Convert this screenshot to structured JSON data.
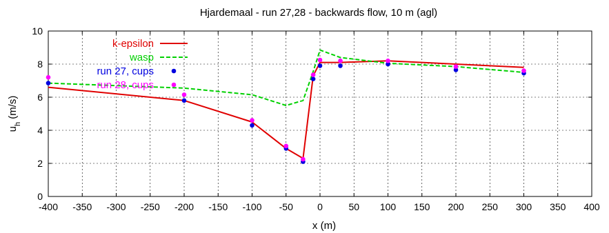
{
  "chart_data": {
    "type": "line",
    "title": "Hjardemaal - run 27,28 - backwards flow, 10 m (agl)",
    "xlabel": "x (m)",
    "ylabel_main": "u",
    "ylabel_sub": "h",
    "ylabel_unit": " (m/s)",
    "xlim": [
      -400,
      400
    ],
    "ylim": [
      0,
      10
    ],
    "xticks": [
      -400,
      -350,
      -300,
      -250,
      -200,
      -150,
      -100,
      -50,
      0,
      50,
      100,
      150,
      200,
      250,
      300,
      350,
      400
    ],
    "yticks": [
      0,
      2,
      4,
      6,
      8,
      10
    ],
    "grid": true,
    "legend_position": "top-left",
    "series": [
      {
        "name": "k-epsilon",
        "style": "line",
        "color": "#e00000",
        "x": [
          -400,
          -200,
          -100,
          -50,
          -25,
          -10,
          0,
          30,
          100,
          200,
          300
        ],
        "y": [
          6.6,
          5.8,
          4.5,
          2.9,
          2.3,
          7.3,
          8.1,
          8.1,
          8.2,
          8.0,
          7.8
        ]
      },
      {
        "name": "wasp",
        "style": "dashed",
        "color": "#00d000",
        "x": [
          -400,
          -200,
          -100,
          -50,
          -25,
          -10,
          0,
          30,
          100,
          200,
          300
        ],
        "y": [
          6.85,
          6.55,
          6.15,
          5.5,
          5.8,
          7.55,
          8.85,
          8.4,
          8.05,
          7.85,
          7.5
        ]
      },
      {
        "name": "run 27, cups",
        "style": "points",
        "color": "#0000e0",
        "x": [
          -400,
          -200,
          -100,
          -50,
          -25,
          -10,
          0,
          30,
          100,
          200,
          300
        ],
        "y": [
          6.85,
          5.8,
          4.3,
          2.9,
          2.1,
          7.1,
          7.9,
          7.9,
          8.0,
          7.65,
          7.45
        ]
      },
      {
        "name": "run 28, cups",
        "style": "points",
        "color": "#ff00ff",
        "x": [
          -400,
          -200,
          -100,
          -50,
          -25,
          -10,
          0,
          30,
          100,
          200,
          300
        ],
        "y": [
          7.2,
          6.15,
          4.6,
          3.05,
          2.25,
          7.35,
          8.25,
          8.2,
          8.2,
          7.85,
          7.6
        ]
      }
    ]
  }
}
